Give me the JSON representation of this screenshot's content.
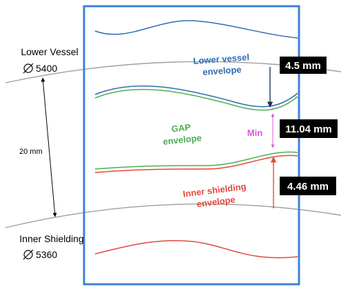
{
  "labels": {
    "lower_vessel": "Lower Vessel",
    "lower_vessel_dia": "5400",
    "inner_shielding": "Inner Shielding",
    "inner_shielding_dia": "5360",
    "gap_20": "20 mm",
    "lower_vessel_env_1": "Lower vessel",
    "lower_vessel_env_2": "envelope",
    "gap_env_1": "GAP",
    "gap_env_2": "envelope",
    "inner_env_1": "Inner shielding",
    "inner_env_2": "envelope",
    "min": "Min"
  },
  "measurements": {
    "top": "4.5 mm",
    "middle": "11.04 mm",
    "bottom": "4.46 mm"
  },
  "colors": {
    "frame": "#3b82d6",
    "lower_vessel": "#2e6db0",
    "gap": "#4caf50",
    "inner": "#e04a3a",
    "min": "#d858d8",
    "arc": "#9e9e9e",
    "box": "#000000",
    "dark_arrow": "#1f3550"
  },
  "icons": {
    "diameter": "diameter-symbol-icon"
  }
}
